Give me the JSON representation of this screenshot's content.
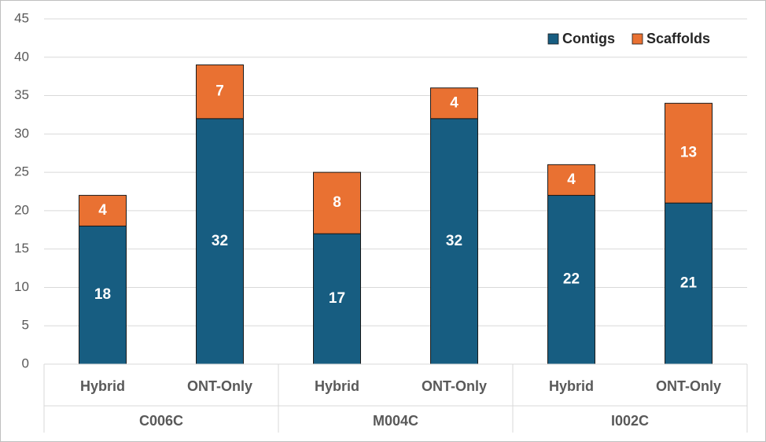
{
  "chart_data": {
    "type": "stacked_bar",
    "categories": [
      "Hybrid",
      "ONT-Only",
      "Hybrid",
      "ONT-Only",
      "Hybrid",
      "ONT-Only"
    ],
    "groups": [
      "C006C",
      "M004C",
      "I002C"
    ],
    "series": [
      {
        "name": "Contigs",
        "color": "#175d81",
        "values": [
          18,
          32,
          17,
          32,
          22,
          21
        ]
      },
      {
        "name": "Scaffolds",
        "color": "#e97132",
        "values": [
          4,
          7,
          8,
          4,
          4,
          13
        ]
      }
    ],
    "ylim": [
      0,
      45
    ],
    "yticks": [
      0,
      5,
      10,
      15,
      20,
      25,
      30,
      35,
      40,
      45
    ],
    "grid": true,
    "legend": "top-right"
  }
}
